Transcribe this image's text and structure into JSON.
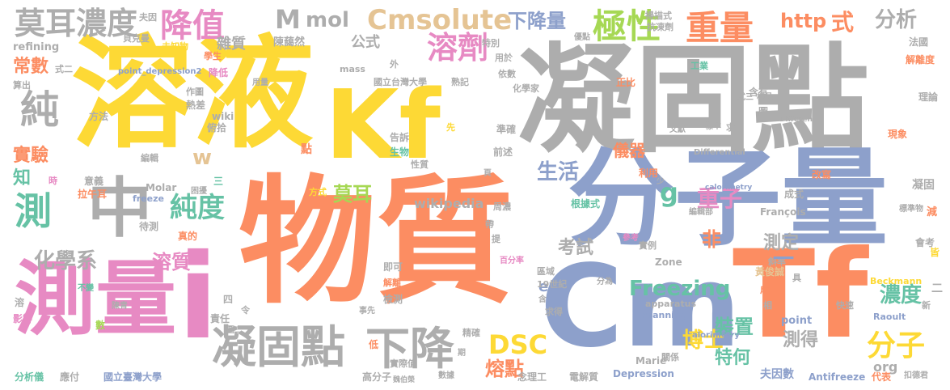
{
  "colors": {
    "yellow": "#fdd935",
    "gray": "#adadad",
    "blue": "#8da0cb",
    "orange": "#fc8d62",
    "pink": "#e78ac3",
    "green": "#66c2a5",
    "lime": "#a6d854",
    "tan": "#e5c494"
  },
  "words": [
    {
      "text": "溶液",
      "color": "yellow"
    },
    {
      "text": "凝固點",
      "color": "gray"
    },
    {
      "text": "物質",
      "color": "orange"
    },
    {
      "text": "分子量",
      "color": "blue"
    },
    {
      "text": "Kf",
      "color": "yellow"
    },
    {
      "text": "測量",
      "color": "pink"
    },
    {
      "text": "Cm",
      "color": "blue"
    },
    {
      "text": "Tf",
      "color": "orange"
    },
    {
      "text": "i",
      "color": "pink"
    },
    {
      "text": "中",
      "color": "gray"
    },
    {
      "text": "凝固點",
      "color": "gray"
    },
    {
      "text": "下降",
      "color": "gray"
    },
    {
      "text": "Cmsolute",
      "color": "tan"
    },
    {
      "text": "莫耳濃度",
      "color": "gray"
    },
    {
      "text": "降值",
      "color": "pink"
    },
    {
      "text": "M",
      "color": "gray"
    },
    {
      "text": "mol",
      "color": "gray"
    },
    {
      "text": "極性",
      "color": "lime"
    },
    {
      "text": "溶劑",
      "color": "pink"
    },
    {
      "text": "下降量",
      "color": "blue"
    },
    {
      "text": "重量",
      "color": "orange"
    },
    {
      "text": "http",
      "color": "orange"
    },
    {
      "text": "式",
      "color": "orange"
    },
    {
      "text": "分析",
      "color": "gray"
    },
    {
      "text": "純",
      "color": "gray"
    },
    {
      "text": "測",
      "color": "green"
    },
    {
      "text": "純度",
      "color": "green"
    },
    {
      "text": "分子",
      "color": "yellow"
    },
    {
      "text": "Freezing",
      "color": "green"
    },
    {
      "text": "DSC",
      "color": "yellow"
    },
    {
      "text": "博士",
      "color": "yellow"
    },
    {
      "text": "熔點",
      "color": "orange"
    },
    {
      "text": "濃度",
      "color": "green"
    },
    {
      "text": "裝置",
      "color": "green"
    },
    {
      "text": "特何",
      "color": "green"
    },
    {
      "text": "測得",
      "color": "gray"
    },
    {
      "text": "化學系",
      "color": "gray"
    },
    {
      "text": "溶質",
      "color": "pink"
    },
    {
      "text": "莫耳",
      "color": "lime"
    },
    {
      "text": "生活",
      "color": "blue"
    },
    {
      "text": "g",
      "color": "green"
    },
    {
      "text": "重子",
      "color": "pink"
    },
    {
      "text": "非",
      "color": "orange"
    },
    {
      "text": "測定",
      "color": "gray"
    },
    {
      "text": "考試",
      "color": "gray"
    },
    {
      "text": "實驗",
      "color": "orange"
    },
    {
      "text": "常數",
      "color": "orange"
    },
    {
      "text": "知",
      "color": "green"
    },
    {
      "text": "w",
      "color": "tan"
    },
    {
      "text": "雜質",
      "color": "gray"
    },
    {
      "text": "公式",
      "color": "gray"
    },
    {
      "text": "儀器",
      "color": "orange"
    },
    {
      "text": "wikipedia",
      "color": "gray"
    },
    {
      "text": "en",
      "color": "blue"
    },
    {
      "text": "org",
      "color": "gray"
    },
    {
      "text": "陳藹然",
      "color": "gray"
    },
    {
      "text": "夫因數",
      "color": "blue"
    },
    {
      "text": "Antifreeze",
      "color": "blue"
    },
    {
      "text": "Depression",
      "color": "blue"
    },
    {
      "text": "國立臺灣大學",
      "color": "blue"
    },
    {
      "text": "國立台灣大學",
      "color": "gray"
    },
    {
      "text": "高分子",
      "color": "gray"
    },
    {
      "text": "念理工",
      "color": "gray"
    },
    {
      "text": "電解質",
      "color": "gray"
    },
    {
      "text": "Beckmann",
      "color": "yellow"
    },
    {
      "text": "Raoult",
      "color": "blue"
    },
    {
      "text": "François",
      "color": "gray"
    },
    {
      "text": "Zone",
      "color": "gray"
    },
    {
      "text": "Marie",
      "color": "gray"
    },
    {
      "text": "scanning",
      "color": "blue"
    },
    {
      "text": "apparatus",
      "color": "gray"
    },
    {
      "text": "Molar",
      "color": "gray"
    },
    {
      "text": "freeze",
      "color": "blue"
    },
    {
      "text": "wiki",
      "color": "gray"
    },
    {
      "text": "mass",
      "color": "gray"
    },
    {
      "text": "refining",
      "color": "gray"
    },
    {
      "text": "Differential",
      "color": "gray"
    },
    {
      "text": "calorimetry",
      "color": "blue"
    },
    {
      "text": "point",
      "color": "blue"
    },
    {
      "text": "19世紀",
      "color": "gray"
    },
    {
      "text": "周濃",
      "color": "gray"
    },
    {
      "text": "根據式",
      "color": "green"
    },
    {
      "text": "實例",
      "color": "gray"
    },
    {
      "text": "分為",
      "color": "gray"
    },
    {
      "text": "區域",
      "color": "gray"
    },
    {
      "text": "檢測",
      "color": "gray"
    },
    {
      "text": "實際值",
      "color": "gray"
    },
    {
      "text": "即可",
      "color": "gray"
    },
    {
      "text": "解離",
      "color": "orange"
    },
    {
      "text": "求得",
      "color": "gray"
    },
    {
      "text": "關係",
      "color": "gray"
    },
    {
      "text": "黃俊誠",
      "color": "tan"
    },
    {
      "text": "斜率",
      "color": "gray"
    },
    {
      "text": "成式",
      "color": "gray"
    },
    {
      "text": "改寫",
      "color": "orange"
    },
    {
      "text": "利用",
      "color": "orange"
    },
    {
      "text": "凝固",
      "color": "gray"
    },
    {
      "text": "減",
      "color": "orange"
    },
    {
      "text": "會考",
      "color": "gray"
    },
    {
      "text": "皆",
      "color": "yellow"
    },
    {
      "text": "新",
      "color": "gray"
    },
    {
      "text": "快速",
      "color": "gray"
    },
    {
      "text": "代表",
      "color": "orange"
    },
    {
      "text": "扣德君",
      "color": "gray"
    },
    {
      "text": "法國",
      "color": "gray"
    },
    {
      "text": "解離度",
      "color": "orange"
    },
    {
      "text": "理論",
      "color": "gray"
    },
    {
      "text": "現象",
      "color": "orange"
    },
    {
      "text": "含有",
      "color": "gray"
    },
    {
      "text": "工業",
      "color": "green"
    },
    {
      "text": "正比",
      "color": "orange"
    },
    {
      "text": "熟記",
      "color": "gray"
    },
    {
      "text": "依數",
      "color": "gray"
    },
    {
      "text": "化學家",
      "color": "gray"
    },
    {
      "text": "用於",
      "color": "gray"
    },
    {
      "text": "特別",
      "color": "gray"
    },
    {
      "text": "抗凍劑",
      "color": "gray"
    },
    {
      "text": "掃描式",
      "color": "gray"
    },
    {
      "text": "夫因",
      "color": "gray"
    },
    {
      "text": "貝克曼",
      "color": "gray"
    },
    {
      "text": "未知物",
      "color": "yellow"
    },
    {
      "text": "學生",
      "color": "orange"
    },
    {
      "text": "式二",
      "color": "gray"
    },
    {
      "text": "算出",
      "color": "gray"
    },
    {
      "text": "用量",
      "color": "gray"
    },
    {
      "text": "作圖",
      "color": "gray"
    },
    {
      "text": "熱差",
      "color": "gray"
    },
    {
      "text": "俯拾",
      "color": "gray"
    },
    {
      "text": "降低",
      "color": "pink"
    },
    {
      "text": "方法",
      "color": "gray"
    },
    {
      "text": "告訴",
      "color": "gray"
    },
    {
      "text": "生物",
      "color": "green"
    },
    {
      "text": "性質",
      "color": "gray"
    },
    {
      "text": "先",
      "color": "yellow"
    },
    {
      "text": "準確",
      "color": "gray"
    },
    {
      "text": "前述",
      "color": "gray"
    },
    {
      "text": "點",
      "color": "orange"
    },
    {
      "text": "編輯",
      "color": "gray"
    },
    {
      "text": "意義",
      "color": "gray"
    },
    {
      "text": "時",
      "color": "pink"
    },
    {
      "text": "拉午耳",
      "color": "orange"
    },
    {
      "text": "方式",
      "color": "yellow"
    },
    {
      "text": "待測",
      "color": "gray"
    },
    {
      "text": "真的",
      "color": "orange"
    },
    {
      "text": "影響",
      "color": "pink"
    },
    {
      "text": "數",
      "color": "lime"
    },
    {
      "text": "責任",
      "color": "gray"
    },
    {
      "text": "分析儀",
      "color": "green"
    },
    {
      "text": "應付",
      "color": "gray"
    },
    {
      "text": "低",
      "color": "orange"
    },
    {
      "text": "帶",
      "color": "gray"
    },
    {
      "text": "提",
      "color": "gray"
    },
    {
      "text": "精確",
      "color": "gray"
    },
    {
      "text": "一",
      "color": "blue"
    },
    {
      "text": "二",
      "color": "gray"
    },
    {
      "text": "三",
      "color": "green"
    },
    {
      "text": "四",
      "color": "gray"
    },
    {
      "text": "令",
      "color": "gray"
    },
    {
      "text": "具",
      "color": "gray"
    },
    {
      "text": "成",
      "color": "orange"
    },
    {
      "text": "相",
      "color": "gray"
    },
    {
      "text": "外",
      "color": "gray"
    },
    {
      "text": "求",
      "color": "gray"
    },
    {
      "text": "圖",
      "color": "gray"
    },
    {
      "text": "少",
      "color": "gray"
    },
    {
      "text": "期",
      "color": "gray"
    },
    {
      "text": "頁",
      "color": "gray"
    },
    {
      "text": "參考",
      "color": "pink"
    },
    {
      "text": "百分率",
      "color": "pink"
    },
    {
      "text": "事先",
      "color": "gray"
    },
    {
      "text": "數據",
      "color": "gray"
    },
    {
      "text": "困擾",
      "color": "gray"
    },
    {
      "text": "不變",
      "color": "green"
    },
    {
      "text": "陳青",
      "color": "gray"
    },
    {
      "text": "圖二",
      "color": "gray"
    },
    {
      "text": "標準物",
      "color": "gray"
    },
    {
      "text": "編輯部",
      "color": "gray"
    },
    {
      "text": "文獻",
      "color": "gray"
    },
    {
      "text": "樣本",
      "color": "gray"
    },
    {
      "text": "樣品",
      "color": "gray"
    },
    {
      "text": "式三",
      "color": "gray"
    },
    {
      "text": "優點",
      "color": "gray"
    },
    {
      "text": "alorimetry",
      "color": "blue"
    },
    {
      "text": "Differenti",
      "color": "gray"
    },
    {
      "text": "point_depression2",
      "color": "blue"
    },
    {
      "text": "魏伯榮",
      "color": "gray"
    },
    {
      "text": "溶",
      "color": "gray"
    },
    {
      "text": "含",
      "color": "gray"
    }
  ]
}
